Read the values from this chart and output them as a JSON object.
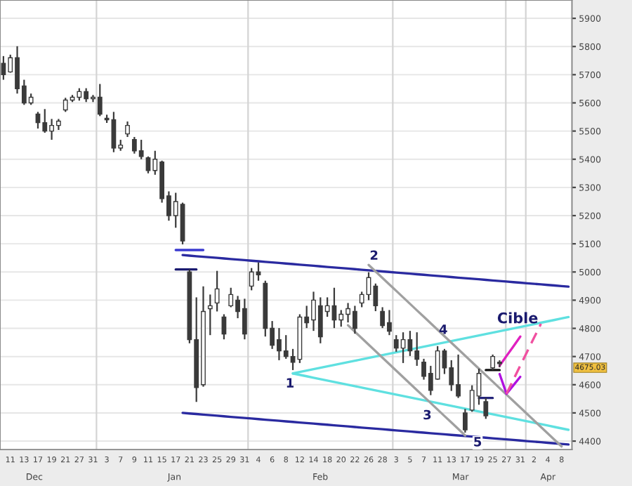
{
  "chart_data": {
    "type": "candlestick",
    "categories": [
      null,
      "11",
      null,
      "13",
      null,
      "17",
      null,
      "19",
      null,
      "21",
      null,
      "27",
      null,
      "31",
      null,
      "3",
      null,
      "7",
      null,
      "9",
      null,
      "11",
      null,
      "15",
      null,
      "17",
      null,
      "21",
      null,
      "23",
      null,
      "25",
      null,
      "29",
      null,
      "31",
      null,
      "4",
      null,
      "6",
      null,
      "8",
      null,
      "12",
      null,
      "14",
      null,
      "18",
      null,
      "20",
      null,
      "22",
      null,
      "26",
      null,
      "28",
      null,
      "3",
      null,
      "5",
      null,
      "7",
      null,
      "11",
      null,
      "13",
      null,
      "17",
      null,
      "19",
      null,
      "25",
      null,
      "27",
      null,
      "31",
      null,
      "2",
      null,
      "4",
      null,
      "8",
      null
    ],
    "ohlc": [
      [
        5740,
        5766,
        5682,
        5700
      ],
      [
        5710,
        5771,
        5707,
        5760
      ],
      [
        5760,
        5801,
        5633,
        5650
      ],
      [
        5660,
        5682,
        5593,
        5600
      ],
      [
        5600,
        5633,
        5593,
        5620
      ],
      [
        5560,
        5568,
        5509,
        5530
      ],
      [
        5530,
        5578,
        5494,
        5500
      ],
      [
        5500,
        5543,
        5469,
        5520
      ],
      [
        5520,
        5543,
        5504,
        5535
      ],
      [
        5575,
        5618,
        5568,
        5610
      ],
      [
        5610,
        5628,
        5603,
        5620
      ],
      [
        5620,
        5652,
        5608,
        5640
      ],
      [
        5640,
        5652,
        5603,
        5615
      ],
      [
        5615,
        5628,
        5603,
        5620
      ],
      [
        5620,
        5667,
        5553,
        5560
      ],
      [
        5545,
        5558,
        5529,
        5540
      ],
      [
        5540,
        5568,
        5425,
        5440
      ],
      [
        5440,
        5469,
        5430,
        5450
      ],
      [
        5490,
        5534,
        5479,
        5520
      ],
      [
        5470,
        5479,
        5420,
        5430
      ],
      [
        5430,
        5469,
        5400,
        5410
      ],
      [
        5405,
        5410,
        5350,
        5360
      ],
      [
        5360,
        5430,
        5345,
        5400
      ],
      [
        5390,
        5395,
        5246,
        5260
      ],
      [
        5270,
        5286,
        5182,
        5200
      ],
      [
        5200,
        5281,
        5157,
        5250
      ],
      [
        5240,
        5246,
        5098,
        5110
      ],
      [
        5000,
        5009,
        4747,
        4760
      ],
      [
        4760,
        4910,
        4539,
        4590
      ],
      [
        4600,
        4949,
        4593,
        4860
      ],
      [
        4870,
        4920,
        4776,
        4880
      ],
      [
        4890,
        5004,
        4860,
        4940
      ],
      [
        4840,
        4850,
        4761,
        4780
      ],
      [
        4880,
        4944,
        4875,
        4920
      ],
      [
        4900,
        4915,
        4836,
        4860
      ],
      [
        4870,
        4905,
        4761,
        4780
      ],
      [
        4950,
        5014,
        4935,
        5000
      ],
      [
        5000,
        5034,
        4969,
        4990
      ],
      [
        4960,
        4969,
        4771,
        4800
      ],
      [
        4800,
        4826,
        4727,
        4740
      ],
      [
        4760,
        4801,
        4687,
        4720
      ],
      [
        4720,
        4776,
        4692,
        4700
      ],
      [
        4700,
        4727,
        4652,
        4680
      ],
      [
        4690,
        4850,
        4677,
        4840
      ],
      [
        4840,
        4880,
        4801,
        4820
      ],
      [
        4830,
        4930,
        4791,
        4900
      ],
      [
        4880,
        4910,
        4747,
        4770
      ],
      [
        4860,
        4910,
        4841,
        4880
      ],
      [
        4880,
        4944,
        4801,
        4830
      ],
      [
        4830,
        4865,
        4806,
        4850
      ],
      [
        4850,
        4890,
        4821,
        4870
      ],
      [
        4860,
        4880,
        4781,
        4800
      ],
      [
        4890,
        4930,
        4875,
        4920
      ],
      [
        4920,
        4999,
        4900,
        4980
      ],
      [
        4950,
        4959,
        4861,
        4880
      ],
      [
        4860,
        4875,
        4801,
        4810
      ],
      [
        4820,
        4865,
        4776,
        4790
      ],
      [
        4760,
        4776,
        4717,
        4730
      ],
      [
        4730,
        4786,
        4677,
        4760
      ],
      [
        4760,
        4791,
        4702,
        4720
      ],
      [
        4720,
        4786,
        4667,
        4690
      ],
      [
        4680,
        4692,
        4618,
        4630
      ],
      [
        4640,
        4667,
        4563,
        4580
      ],
      [
        4620,
        4737,
        4618,
        4720
      ],
      [
        4720,
        4727,
        4638,
        4660
      ],
      [
        4660,
        4687,
        4578,
        4600
      ],
      [
        4600,
        4707,
        4553,
        4560
      ],
      [
        4500,
        4514,
        4430,
        4440
      ],
      [
        4510,
        4598,
        4504,
        4580
      ],
      [
        4560,
        4657,
        4529,
        4640
      ],
      [
        4540,
        4553,
        4479,
        4490
      ],
      [
        4660,
        4707,
        4652,
        4700
      ],
      [
        4680,
        4687,
        4662,
        4675
      ],
      null,
      null,
      null,
      null,
      null,
      null,
      null,
      null,
      null,
      null
    ],
    "color": "#3a3a3a",
    "series": [
      {
        "type": "line",
        "color": "#2a2aa0",
        "line_style": "solid",
        "values": [
          null,
          null,
          null,
          null,
          null,
          null,
          null,
          null,
          null,
          null,
          null,
          null,
          null,
          null,
          null,
          null,
          null,
          null,
          null,
          null,
          null,
          null,
          null,
          null,
          null,
          null,
          5060,
          5058,
          5056,
          5054,
          5052,
          5050,
          5048,
          5046,
          5044,
          5042,
          5040,
          5038,
          5036,
          5034,
          5032,
          5030,
          5028,
          5026,
          5024,
          5022,
          5020,
          5018,
          5016,
          5014,
          5012,
          5010,
          5008,
          5006,
          5004,
          5002,
          5000,
          4998,
          4996,
          4994,
          4992,
          4990,
          4988,
          4986,
          4984,
          4982,
          4980,
          4978,
          4976,
          4974,
          4972,
          4970,
          4968,
          4966,
          4964,
          4962,
          4960,
          4958,
          4956,
          4954,
          4952,
          4950,
          4948
        ]
      },
      {
        "type": "line",
        "color": "#2a2aa0",
        "line_style": "solid",
        "values": [
          null,
          null,
          null,
          null,
          null,
          null,
          null,
          null,
          null,
          null,
          null,
          null,
          null,
          null,
          null,
          null,
          null,
          null,
          null,
          null,
          null,
          null,
          null,
          null,
          null,
          null,
          4500,
          4498,
          4496,
          4494,
          4492,
          4490,
          4488,
          4486,
          4484,
          4482,
          4480,
          4478,
          4476,
          4474,
          4472,
          4470,
          4468,
          4466,
          4464,
          4462,
          4460,
          4458,
          4456,
          4454,
          4452,
          4450,
          4448,
          4446,
          4444,
          4442,
          4440,
          4438,
          4436,
          4434,
          4432,
          4430,
          4428,
          4426,
          4424,
          4422,
          4420,
          4418,
          4416,
          4414,
          4412,
          4410,
          4408,
          4406,
          4404,
          4402,
          4400,
          4398,
          4396,
          4394,
          4392,
          4390,
          4388
        ]
      },
      {
        "type": "line",
        "color": "#5fe0e0",
        "line_style": "solid",
        "values": [
          null,
          null,
          null,
          null,
          null,
          null,
          null,
          null,
          null,
          null,
          null,
          null,
          null,
          null,
          null,
          null,
          null,
          null,
          null,
          null,
          null,
          null,
          null,
          null,
          null,
          null,
          null,
          null,
          null,
          null,
          null,
          null,
          null,
          null,
          null,
          null,
          null,
          null,
          null,
          null,
          null,
          null,
          4640,
          4645,
          4650,
          4655,
          4660,
          4665,
          4670,
          4675,
          4680,
          4685,
          4690,
          4695,
          4700,
          4705,
          4710,
          4715,
          4720,
          4725,
          4730,
          4735,
          4740,
          4745,
          4750,
          4755,
          4760,
          4765,
          4770,
          4775,
          4780,
          4785,
          4790,
          4795,
          4800,
          4805,
          4810,
          4815,
          4820,
          4825,
          4830,
          4835,
          4840
        ]
      },
      {
        "type": "line",
        "color": "#5fe0e0",
        "line_style": "solid",
        "values": [
          null,
          null,
          null,
          null,
          null,
          null,
          null,
          null,
          null,
          null,
          null,
          null,
          null,
          null,
          null,
          null,
          null,
          null,
          null,
          null,
          null,
          null,
          null,
          null,
          null,
          null,
          null,
          null,
          null,
          null,
          null,
          null,
          null,
          null,
          null,
          null,
          null,
          null,
          null,
          null,
          null,
          null,
          4640,
          4635,
          4630,
          4625,
          4620,
          4615,
          4610,
          4605,
          4600,
          4595,
          4590,
          4585,
          4580,
          4575,
          4570,
          4565,
          4560,
          4555,
          4550,
          4545,
          4540,
          4535,
          4530,
          4525,
          4520,
          4515,
          4510,
          4505,
          4500,
          4495,
          4490,
          4485,
          4480,
          4475,
          4470,
          4465,
          4460,
          4455,
          4450,
          4445,
          4440
        ]
      },
      {
        "type": "line",
        "color": "#a0a0a0",
        "line_style": "solid",
        "values": [
          null,
          null,
          null,
          null,
          null,
          null,
          null,
          null,
          null,
          null,
          null,
          null,
          null,
          null,
          null,
          null,
          null,
          null,
          null,
          null,
          null,
          null,
          null,
          null,
          null,
          null,
          null,
          null,
          null,
          null,
          null,
          null,
          null,
          null,
          null,
          null,
          null,
          null,
          null,
          null,
          null,
          null,
          null,
          null,
          null,
          null,
          null,
          null,
          null,
          null,
          null,
          null,
          null,
          5025,
          5002,
          4979,
          4956,
          4933,
          4910,
          4887,
          4864,
          4841,
          4818,
          4795,
          4772,
          4749,
          4726,
          4703,
          4680,
          4657,
          4634,
          4611,
          4588,
          4565,
          4542,
          4519,
          4496,
          4473,
          4450,
          4427,
          4404,
          4381,
          null
        ]
      },
      {
        "type": "line",
        "color": "#a0a0a0",
        "line_style": "solid",
        "values": [
          null,
          null,
          null,
          null,
          null,
          null,
          null,
          null,
          null,
          null,
          null,
          null,
          null,
          null,
          null,
          null,
          null,
          null,
          null,
          null,
          null,
          null,
          null,
          null,
          null,
          null,
          null,
          null,
          null,
          null,
          null,
          null,
          null,
          null,
          null,
          null,
          null,
          null,
          null,
          null,
          null,
          null,
          null,
          null,
          null,
          null,
          null,
          null,
          null,
          null,
          4811,
          4788,
          4765,
          4742,
          4719,
          4696,
          4673,
          4650,
          4627,
          4604,
          4581,
          4558,
          4535,
          4512,
          4489,
          4466,
          4443,
          4420,
          null,
          null,
          null,
          null,
          null,
          null,
          null,
          null,
          null,
          null,
          null,
          null,
          null,
          null,
          null
        ]
      },
      {
        "type": "line",
        "color": "#3a3ad0",
        "line_style": "solid",
        "values": [
          null,
          null,
          null,
          null,
          null,
          null,
          null,
          null,
          null,
          null,
          null,
          null,
          null,
          null,
          null,
          null,
          null,
          null,
          null,
          null,
          null,
          null,
          null,
          null,
          null,
          5078,
          5078,
          5078,
          5078,
          5078,
          null,
          null,
          null,
          null,
          null,
          null,
          null,
          null,
          null,
          null,
          null,
          null,
          null,
          null,
          null,
          null,
          null,
          null,
          null,
          null,
          null,
          null,
          null,
          null,
          null,
          null,
          null,
          null,
          null,
          null,
          null,
          null,
          null,
          null,
          null,
          null,
          null,
          null,
          null,
          null,
          null,
          null,
          null,
          null,
          null,
          null,
          null,
          null,
          null,
          null,
          null,
          null,
          null
        ]
      },
      {
        "type": "line",
        "color": "#1a1a70",
        "line_style": "solid",
        "values": [
          null,
          null,
          null,
          null,
          null,
          null,
          null,
          null,
          null,
          null,
          null,
          null,
          null,
          null,
          null,
          null,
          null,
          null,
          null,
          null,
          null,
          null,
          null,
          null,
          null,
          5009,
          5009,
          5009,
          5009,
          null,
          null,
          null,
          null,
          null,
          null,
          null,
          null,
          null,
          null,
          null,
          null,
          null,
          null,
          null,
          null,
          null,
          null,
          null,
          null,
          null,
          null,
          null,
          null,
          null,
          null,
          null,
          null,
          null,
          null,
          null,
          null,
          null,
          null,
          null,
          null,
          null,
          null,
          null,
          null,
          null,
          null,
          null,
          null,
          null,
          null,
          null,
          null,
          null,
          null,
          null,
          null,
          null,
          null
        ]
      },
      {
        "type": "line",
        "color": "#24247a",
        "line_style": "solid",
        "values": [
          null,
          null,
          null,
          null,
          null,
          null,
          null,
          null,
          null,
          null,
          null,
          null,
          null,
          null,
          null,
          null,
          null,
          null,
          null,
          null,
          null,
          null,
          null,
          null,
          null,
          null,
          null,
          null,
          null,
          null,
          null,
          null,
          null,
          null,
          null,
          null,
          null,
          null,
          null,
          null,
          null,
          null,
          null,
          null,
          null,
          null,
          null,
          null,
          null,
          null,
          null,
          null,
          null,
          null,
          null,
          null,
          null,
          null,
          null,
          null,
          null,
          null,
          null,
          null,
          null,
          null,
          null,
          null,
          null,
          4553,
          4553,
          4553,
          null,
          null,
          null,
          null,
          null,
          null,
          null,
          null,
          null,
          null,
          null
        ]
      },
      {
        "type": "line",
        "color": "#111111",
        "line_style": "solid",
        "values": [
          null,
          null,
          null,
          null,
          null,
          null,
          null,
          null,
          null,
          null,
          null,
          null,
          null,
          null,
          null,
          null,
          null,
          null,
          null,
          null,
          null,
          null,
          null,
          null,
          null,
          null,
          null,
          null,
          null,
          null,
          null,
          null,
          null,
          null,
          null,
          null,
          null,
          null,
          null,
          null,
          null,
          null,
          null,
          null,
          null,
          null,
          null,
          null,
          null,
          null,
          null,
          null,
          null,
          null,
          null,
          null,
          null,
          null,
          null,
          null,
          null,
          null,
          null,
          null,
          null,
          null,
          null,
          null,
          null,
          null,
          4652,
          4652,
          4652,
          null,
          null,
          null,
          null,
          null,
          null,
          null,
          null,
          null,
          null
        ]
      },
      {
        "type": "line",
        "color": "#e020c0",
        "line_style": "solid",
        "values": [
          null,
          null,
          null,
          null,
          null,
          null,
          null,
          null,
          null,
          null,
          null,
          null,
          null,
          null,
          null,
          null,
          null,
          null,
          null,
          null,
          null,
          null,
          null,
          null,
          null,
          null,
          null,
          null,
          null,
          null,
          null,
          null,
          null,
          null,
          null,
          null,
          null,
          null,
          null,
          null,
          null,
          null,
          null,
          null,
          null,
          null,
          null,
          null,
          null,
          null,
          null,
          null,
          null,
          null,
          null,
          null,
          null,
          null,
          null,
          null,
          null,
          null,
          null,
          null,
          null,
          null,
          null,
          null,
          null,
          null,
          null,
          null,
          4667,
          4702,
          4736,
          4771,
          null,
          null,
          null,
          null,
          null,
          null,
          null
        ]
      },
      {
        "type": "line",
        "color": "#b010e0",
        "line_style": "solid",
        "values": [
          null,
          null,
          null,
          null,
          null,
          null,
          null,
          null,
          null,
          null,
          null,
          null,
          null,
          null,
          null,
          null,
          null,
          null,
          null,
          null,
          null,
          null,
          null,
          null,
          null,
          null,
          null,
          null,
          null,
          null,
          null,
          null,
          null,
          null,
          null,
          null,
          null,
          null,
          null,
          null,
          null,
          null,
          null,
          null,
          null,
          null,
          null,
          null,
          null,
          null,
          null,
          null,
          null,
          null,
          null,
          null,
          null,
          null,
          null,
          null,
          null,
          null,
          null,
          null,
          null,
          null,
          null,
          null,
          null,
          null,
          null,
          null,
          4638,
          4568,
          4598,
          4628,
          null,
          null,
          null,
          null,
          null,
          null,
          null
        ]
      },
      {
        "type": "line",
        "color": "#f050a0",
        "line_style": "dashed",
        "values": [
          null,
          null,
          null,
          null,
          null,
          null,
          null,
          null,
          null,
          null,
          null,
          null,
          null,
          null,
          null,
          null,
          null,
          null,
          null,
          null,
          null,
          null,
          null,
          null,
          null,
          null,
          null,
          null,
          null,
          null,
          null,
          null,
          null,
          null,
          null,
          null,
          null,
          null,
          null,
          null,
          null,
          null,
          null,
          null,
          null,
          null,
          null,
          null,
          null,
          null,
          null,
          null,
          null,
          null,
          null,
          null,
          null,
          null,
          null,
          null,
          null,
          null,
          null,
          null,
          null,
          null,
          null,
          null,
          null,
          null,
          null,
          null,
          null,
          4568,
          4618,
          4668,
          4717,
          4767,
          4816,
          null,
          null,
          null,
          null
        ]
      }
    ],
    "ylim": [
      4370,
      5965
    ],
    "yticks": [
      4400,
      4500,
      4600,
      4700,
      4800,
      4900,
      5000,
      5100,
      5200,
      5300,
      5400,
      5500,
      5600,
      5700,
      5800,
      5900
    ],
    "grid": "y",
    "annotations": [
      "1",
      "2",
      "3",
      "4",
      "5",
      "Cible",
      "4675.03",
      "Dec",
      "Jan",
      "Feb",
      "Mar",
      "Apr"
    ]
  }
}
